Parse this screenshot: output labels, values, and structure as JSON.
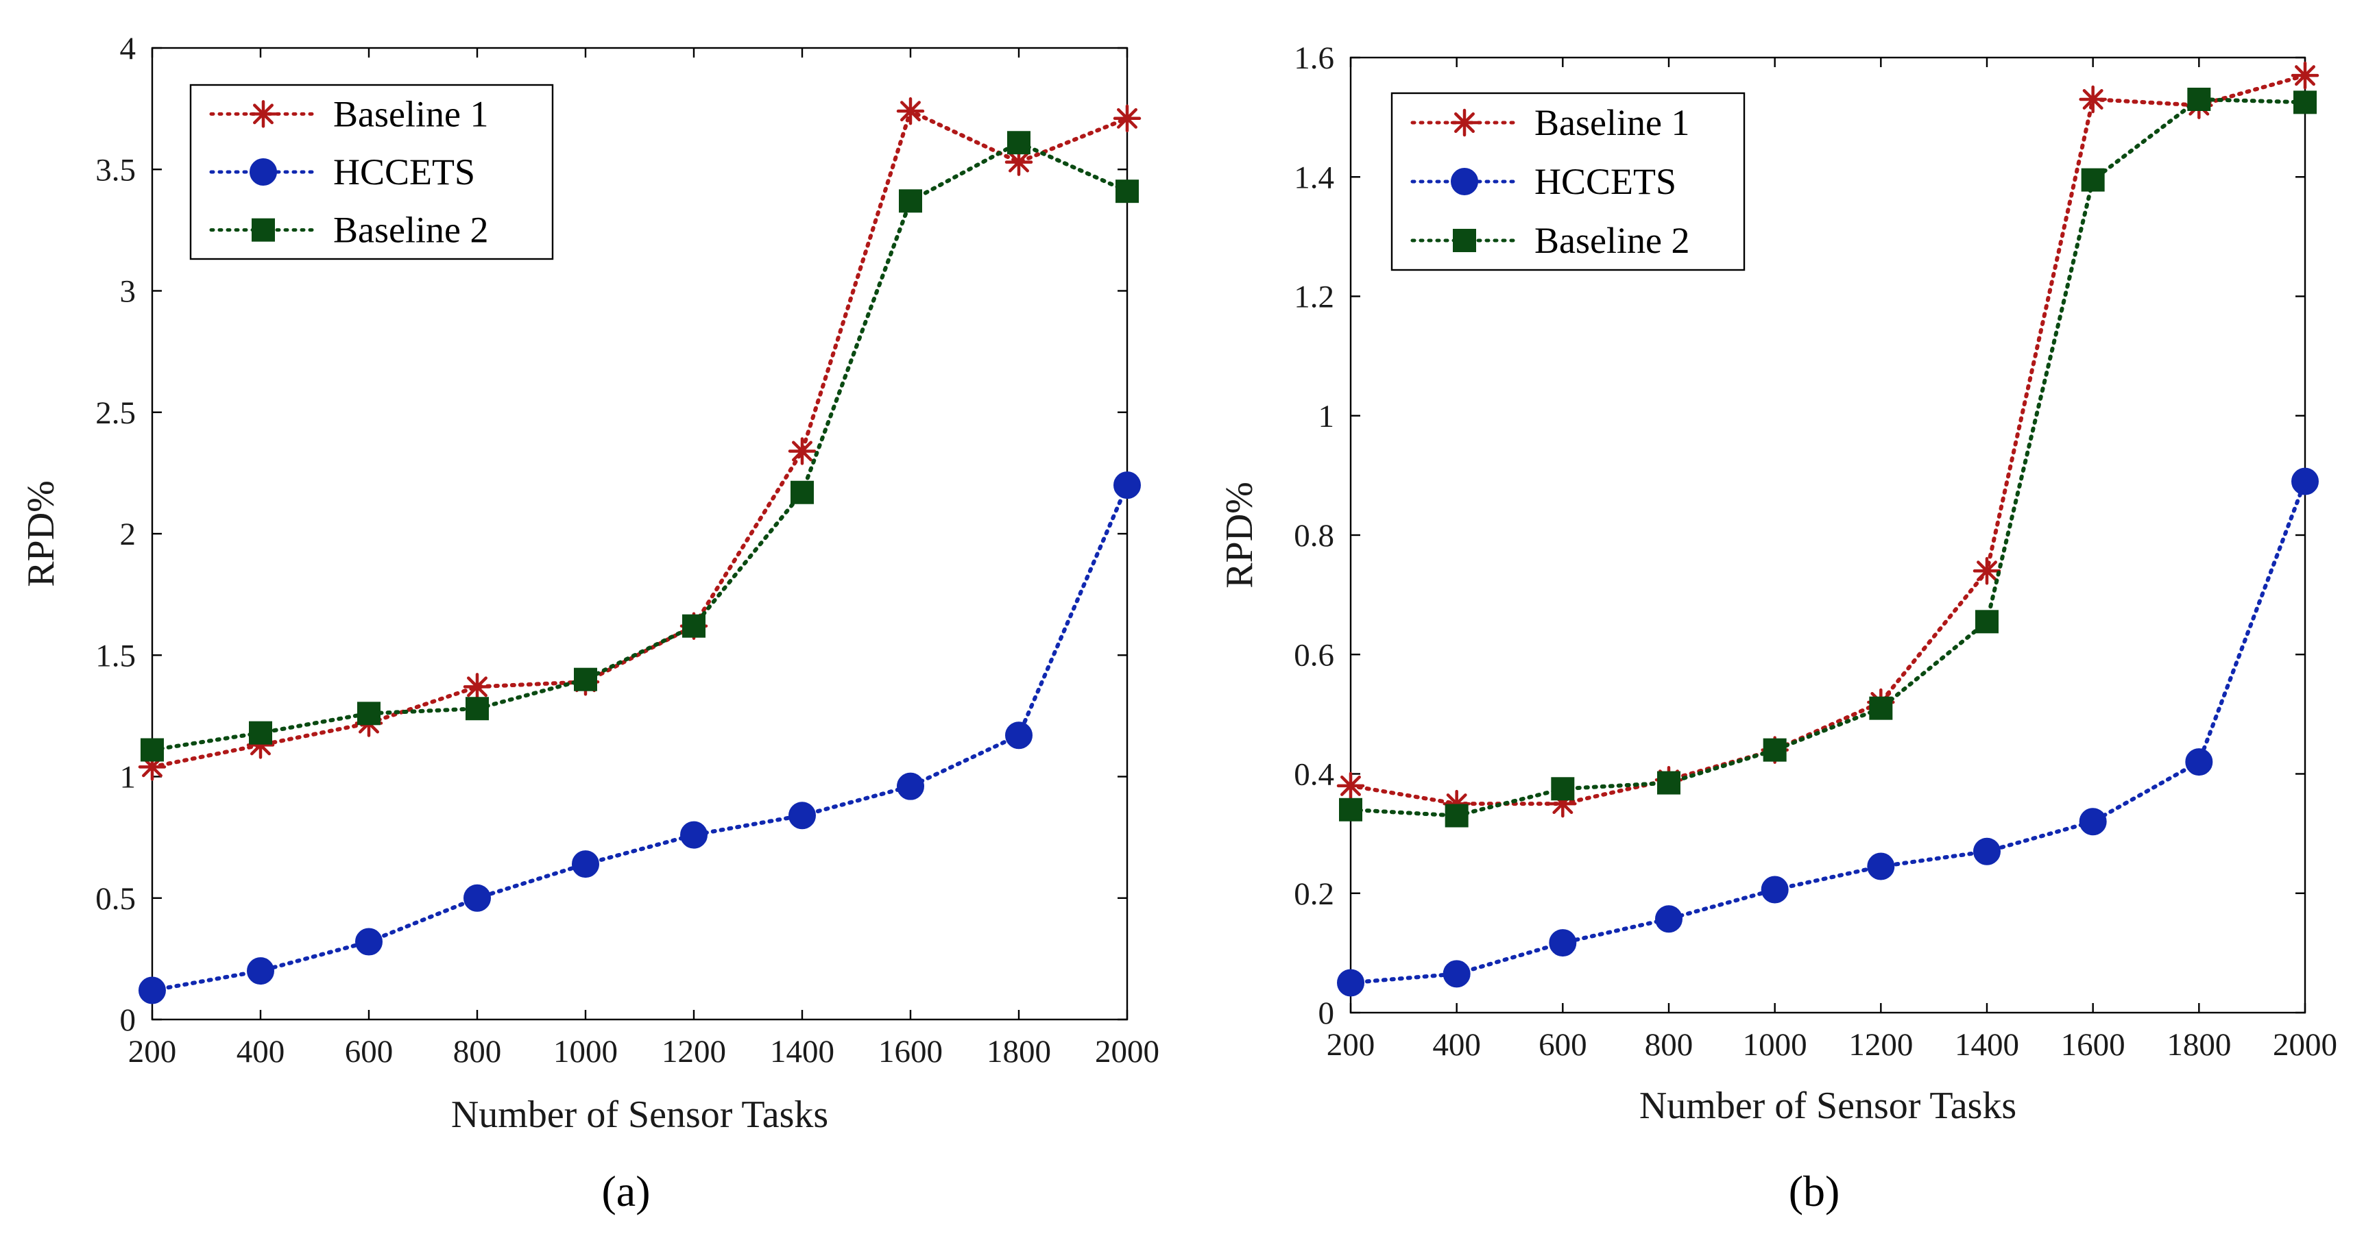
{
  "colors": {
    "baseline1": "#b01818",
    "hccets": "#1028b0",
    "baseline2": "#0a4a12"
  },
  "chart_data": [
    {
      "type": "line",
      "panel_label": "(a)",
      "xlabel": "Number of Sensor Tasks",
      "ylabel": "RPD%",
      "x": [
        200,
        400,
        600,
        800,
        1000,
        1200,
        1400,
        1600,
        1800,
        2000
      ],
      "xlim": [
        200,
        2000
      ],
      "ylim": [
        0,
        4
      ],
      "xticks": [
        200,
        400,
        600,
        800,
        1000,
        1200,
        1400,
        1600,
        1800,
        2000
      ],
      "yticks": [
        0,
        0.5,
        1,
        1.5,
        2,
        2.5,
        3,
        3.5,
        4
      ],
      "xtick_labels": [
        "200",
        "400",
        "600",
        "800",
        "1000",
        "1200",
        "1400",
        "1600",
        "1800",
        "2000"
      ],
      "ytick_labels": [
        "0",
        "0.5",
        "1",
        "1.5",
        "2",
        "2.5",
        "3",
        "3.5",
        "4"
      ],
      "legend_position": "top-left",
      "series": [
        {
          "name": "Baseline 1",
          "marker": "asterisk",
          "color_key": "baseline1",
          "values": [
            1.04,
            1.13,
            1.22,
            1.37,
            1.39,
            1.62,
            2.34,
            3.74,
            3.53,
            3.71
          ]
        },
        {
          "name": "HCCETS",
          "marker": "circle",
          "color_key": "hccets",
          "values": [
            0.12,
            0.2,
            0.32,
            0.5,
            0.64,
            0.76,
            0.84,
            0.96,
            1.17,
            2.2
          ]
        },
        {
          "name": "Baseline 2",
          "marker": "square",
          "color_key": "baseline2",
          "values": [
            1.11,
            1.18,
            1.26,
            1.28,
            1.4,
            1.62,
            2.17,
            3.37,
            3.61,
            3.41
          ]
        }
      ]
    },
    {
      "type": "line",
      "panel_label": "(b)",
      "xlabel": "Number of Sensor Tasks",
      "ylabel": "RPD%",
      "x": [
        200,
        400,
        600,
        800,
        1000,
        1200,
        1400,
        1600,
        1800,
        2000
      ],
      "xlim": [
        200,
        2000
      ],
      "ylim": [
        0,
        1.6
      ],
      "xticks": [
        200,
        400,
        600,
        800,
        1000,
        1200,
        1400,
        1600,
        1800,
        2000
      ],
      "yticks": [
        0,
        0.2,
        0.4,
        0.6,
        0.8,
        1,
        1.2,
        1.4,
        1.6
      ],
      "xtick_labels": [
        "200",
        "400",
        "600",
        "800",
        "1000",
        "1200",
        "1400",
        "1600",
        "1800",
        "2000"
      ],
      "ytick_labels": [
        "0",
        "0.2",
        "0.4",
        "0.6",
        "0.8",
        "1",
        "1.2",
        "1.4",
        "1.6"
      ],
      "legend_position": "top-left",
      "series": [
        {
          "name": "Baseline 1",
          "marker": "asterisk",
          "color_key": "baseline1",
          "values": [
            0.38,
            0.35,
            0.35,
            0.39,
            0.44,
            0.52,
            0.74,
            1.53,
            1.52,
            1.57
          ]
        },
        {
          "name": "HCCETS",
          "marker": "circle",
          "color_key": "hccets",
          "values": [
            0.05,
            0.065,
            0.117,
            0.157,
            0.206,
            0.245,
            0.27,
            0.32,
            0.42,
            0.89
          ]
        },
        {
          "name": "Baseline 2",
          "marker": "square",
          "color_key": "baseline2",
          "values": [
            0.34,
            0.33,
            0.375,
            0.385,
            0.44,
            0.51,
            0.655,
            1.395,
            1.53,
            1.525
          ]
        }
      ]
    }
  ]
}
